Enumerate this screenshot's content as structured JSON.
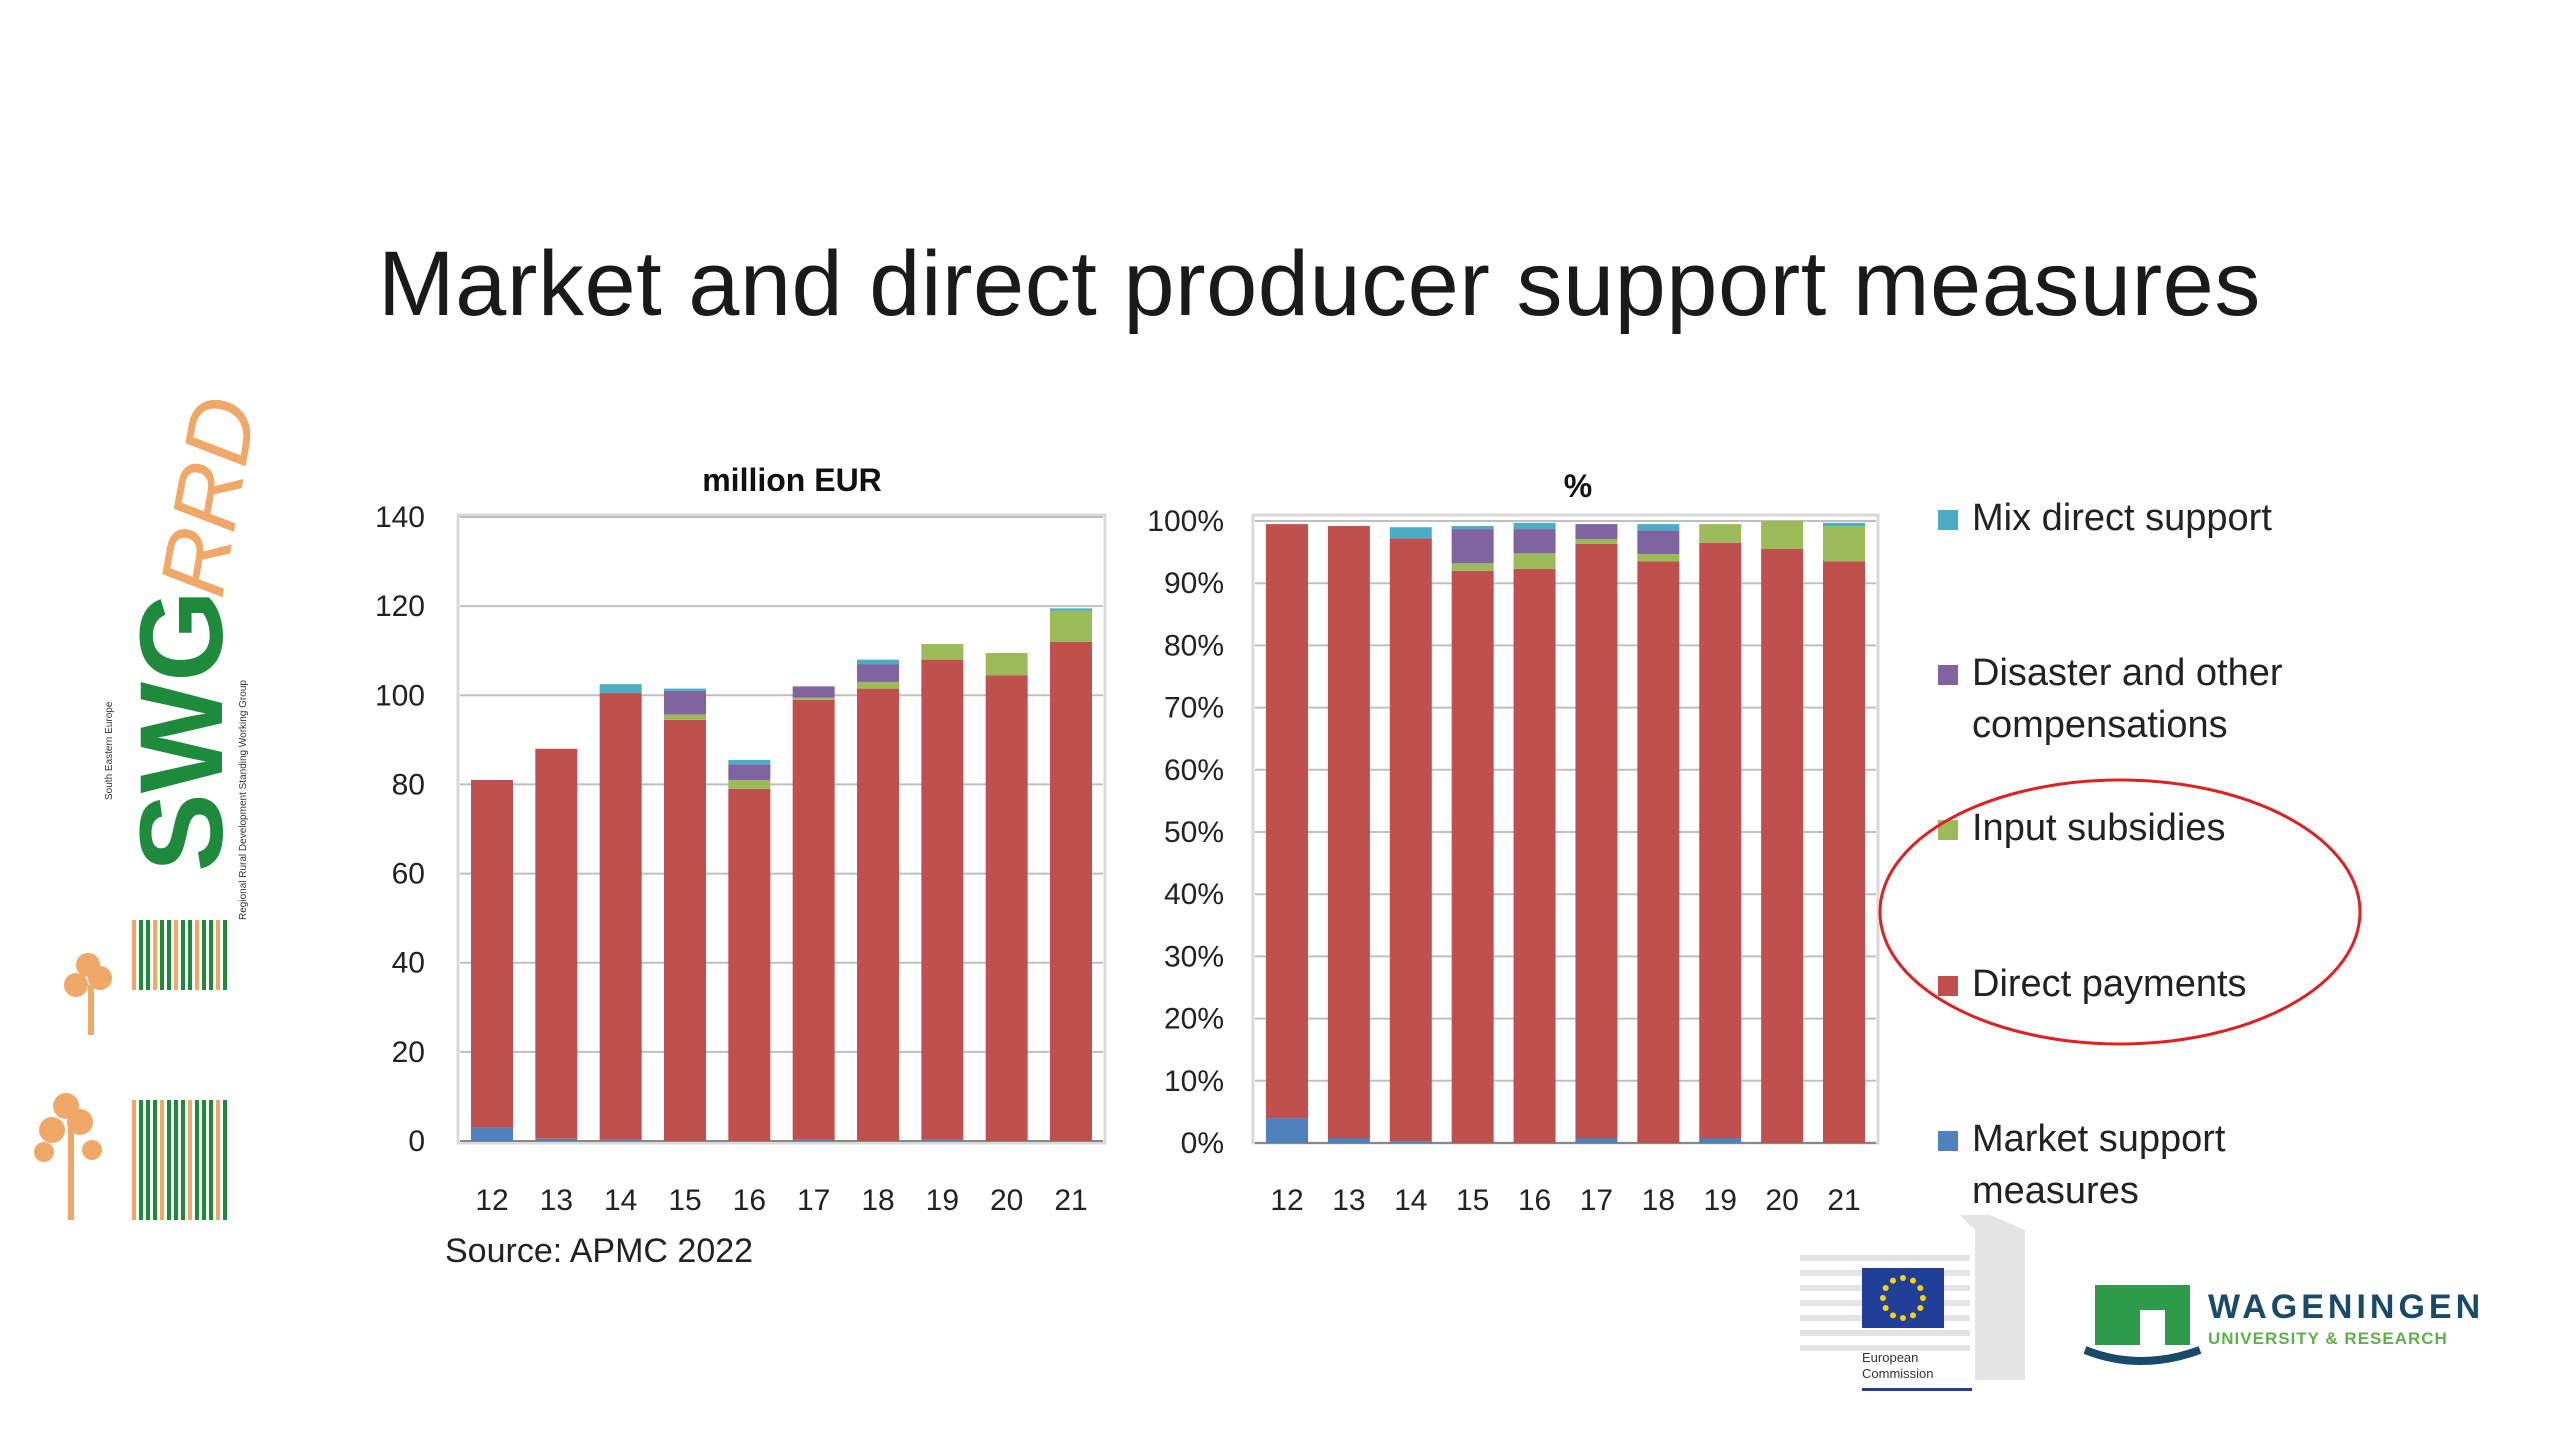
{
  "slide": {
    "title": "Market and direct producer support measures",
    "source": "Source: APMC 2022"
  },
  "colors": {
    "direct_payments": "#c0504d",
    "input_subsidies": "#9bbb59",
    "disaster": "#8064a2",
    "mix_direct": "#4bacc6",
    "market_support": "#4f81bd",
    "highlight_ellipse": "#e02020"
  },
  "legend": [
    {
      "lines": [
        "Mix direct support"
      ],
      "series": "mix_direct"
    },
    {
      "lines": [
        "Disaster and other",
        "compensations"
      ],
      "series": "disaster"
    },
    {
      "lines": [
        "Input subsidies"
      ],
      "series": "input_subsidies"
    },
    {
      "lines": [
        "Direct payments"
      ],
      "series": "direct_payments"
    },
    {
      "lines": [
        "Market support",
        "measures"
      ],
      "series": "market_support"
    }
  ],
  "logos": {
    "swg_main": "SWG",
    "swg_script": "RRD",
    "swg_vertical_1": "South Eastern Europe",
    "swg_vertical_2": "Regional Rural Development Standing Working Group",
    "ec_line1": "European",
    "ec_line2": "Commission",
    "wur_line1": "WAGENINGEN",
    "wur_line2": "UNIVERSITY & RESEARCH"
  },
  "chart_data": [
    {
      "type": "bar",
      "stacked": true,
      "title": "million EUR",
      "categories": [
        "12",
        "13",
        "14",
        "15",
        "16",
        "17",
        "18",
        "19",
        "20",
        "21"
      ],
      "ylim": [
        0,
        140
      ],
      "yticks": [
        "0",
        "20",
        "40",
        "60",
        "80",
        "100",
        "120",
        "140"
      ],
      "grid": true,
      "series": [
        {
          "name": "Market support measures",
          "key": "market_support",
          "values": [
            3,
            0.5,
            0.3,
            0,
            0,
            0.3,
            0,
            0.3,
            0,
            0
          ]
        },
        {
          "name": "Direct payments",
          "key": "direct_payments",
          "values": [
            78,
            87.5,
            100.2,
            94.5,
            79,
            98.7,
            101.5,
            107.7,
            104.5,
            112
          ]
        },
        {
          "name": "Input subsidies",
          "key": "input_subsidies",
          "values": [
            0,
            0,
            0,
            1.2,
            2,
            0.5,
            1.5,
            3.5,
            5,
            7
          ]
        },
        {
          "name": "Disaster and other compensations",
          "key": "disaster",
          "values": [
            0,
            0,
            0,
            5.3,
            3.5,
            2.5,
            4,
            0,
            0,
            0
          ]
        },
        {
          "name": "Mix direct support",
          "key": "mix_direct",
          "values": [
            0,
            0,
            2,
            0.5,
            1,
            0,
            1,
            0,
            0,
            0.5
          ]
        }
      ]
    },
    {
      "type": "bar",
      "stacked": true,
      "title": "%",
      "categories": [
        "12",
        "13",
        "14",
        "15",
        "16",
        "17",
        "18",
        "19",
        "20",
        "21"
      ],
      "ylim": [
        0,
        100
      ],
      "yticks": [
        "0%",
        "10%",
        "20%",
        "30%",
        "40%",
        "50%",
        "60%",
        "70%",
        "80%",
        "90%",
        "100%"
      ],
      "grid": true,
      "series": [
        {
          "name": "Market support measures",
          "key": "market_support",
          "values": [
            4,
            0.8,
            0.3,
            0,
            0,
            0.8,
            0,
            0.8,
            0,
            0
          ]
        },
        {
          "name": "Direct payments",
          "key": "direct_payments",
          "values": [
            95.5,
            98.4,
            96.9,
            92,
            92.3,
            95.5,
            93.5,
            95.7,
            95.5,
            93.5
          ]
        },
        {
          "name": "Input subsidies",
          "key": "input_subsidies",
          "values": [
            0,
            0,
            0,
            1.2,
            2.5,
            0.8,
            1.2,
            3,
            4.5,
            5.7
          ]
        },
        {
          "name": "Disaster and other compensations",
          "key": "disaster",
          "values": [
            0,
            0,
            0,
            5.5,
            3.9,
            2.4,
            3.8,
            0,
            0,
            0
          ]
        },
        {
          "name": "Mix direct support",
          "key": "mix_direct",
          "values": [
            0,
            0,
            1.8,
            0.5,
            1,
            0,
            1,
            0,
            0,
            0.5
          ]
        }
      ]
    }
  ]
}
